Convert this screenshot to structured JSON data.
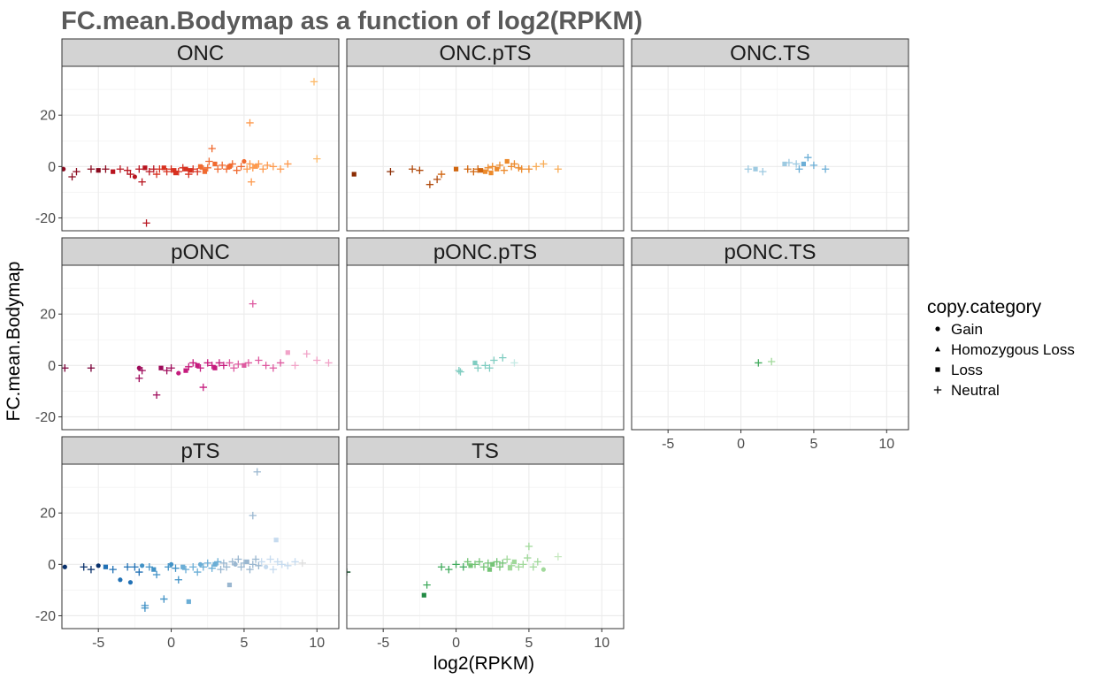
{
  "chart_data": {
    "type": "scatter",
    "title": "FC.mean.Bodymap as a function of log2(RPKM)",
    "xlabel": "log2(RPKM)",
    "ylabel": "FC.mean.Bodymap",
    "xlim": [
      -7.5,
      11.5
    ],
    "ylim": [
      -25,
      39
    ],
    "x_ticks": [
      -5,
      0,
      5,
      10
    ],
    "y_ticks": [
      -20,
      0,
      20
    ],
    "grid": true,
    "legend": {
      "title": "copy.category",
      "position": "right",
      "entries": [
        {
          "label": "Gain",
          "shape": "circle"
        },
        {
          "label": "Homozygous Loss",
          "shape": "triangle"
        },
        {
          "label": "Loss",
          "shape": "square"
        },
        {
          "label": "Neutral",
          "shape": "plus"
        }
      ]
    },
    "panels": [
      {
        "label": "ONC",
        "colors": [
          "#8b0a1f",
          "#b8141f",
          "#d7301f",
          "#f06a30",
          "#fd9a4e",
          "#fdbb6c"
        ],
        "points": [
          [
            -7.4,
            -1,
            "c"
          ],
          [
            -6.5,
            -2,
            "p"
          ],
          [
            -6.8,
            -4,
            "p"
          ],
          [
            -5.5,
            -1,
            "p"
          ],
          [
            -5,
            -1.5,
            "s"
          ],
          [
            -4.5,
            -1,
            "p"
          ],
          [
            -4,
            -2,
            "s"
          ],
          [
            -3.5,
            -1,
            "p"
          ],
          [
            -3,
            -1.5,
            "p"
          ],
          [
            -2.8,
            -3,
            "p"
          ],
          [
            -2.5,
            -4,
            "c"
          ],
          [
            -2.2,
            -1,
            "p"
          ],
          [
            -2,
            -6,
            "p"
          ],
          [
            -1.8,
            -0.5,
            "s"
          ],
          [
            -1.5,
            -2,
            "p"
          ],
          [
            -1.2,
            -1,
            "p"
          ],
          [
            -1,
            -3,
            "p"
          ],
          [
            -0.8,
            -1,
            "p"
          ],
          [
            -0.5,
            -0.5,
            "s"
          ],
          [
            -0.3,
            -2,
            "p"
          ],
          [
            0,
            -1,
            "p"
          ],
          [
            0.2,
            -1.5,
            "s"
          ],
          [
            0.5,
            -2,
            "p"
          ],
          [
            0.8,
            -0.5,
            "p"
          ],
          [
            1,
            -1,
            "s"
          ],
          [
            1.2,
            -3,
            "p"
          ],
          [
            1.5,
            -1,
            "p"
          ],
          [
            1.8,
            -2,
            "p"
          ],
          [
            2,
            0,
            "s"
          ],
          [
            2.2,
            -1,
            "p"
          ],
          [
            2.5,
            -0.5,
            "p"
          ],
          [
            2.6,
            2,
            "p"
          ],
          [
            2.8,
            7,
            "p"
          ],
          [
            3,
            1,
            "s"
          ],
          [
            3.2,
            -1,
            "p"
          ],
          [
            3.5,
            0.5,
            "p"
          ],
          [
            3.8,
            -1,
            "p"
          ],
          [
            4,
            0,
            "s"
          ],
          [
            4.2,
            1,
            "p"
          ],
          [
            4.5,
            -1.5,
            "p"
          ],
          [
            4.8,
            0,
            "p"
          ],
          [
            5,
            2,
            "c"
          ],
          [
            5.2,
            -1,
            "p"
          ],
          [
            5.4,
            1,
            "p"
          ],
          [
            5.6,
            -0.5,
            "p"
          ],
          [
            5.8,
            0,
            "s"
          ],
          [
            6,
            1,
            "p"
          ],
          [
            6.3,
            -1,
            "p"
          ],
          [
            6.6,
            0.5,
            "p"
          ],
          [
            7,
            0,
            "p"
          ],
          [
            7.5,
            -1,
            "p"
          ],
          [
            8,
            1,
            "p"
          ],
          [
            5.5,
            -6,
            "p"
          ],
          [
            5.4,
            17,
            "p"
          ],
          [
            9.8,
            33,
            "p"
          ],
          [
            10,
            3,
            "p"
          ],
          [
            -1.7,
            -22,
            "p"
          ],
          [
            0.3,
            -2.5,
            "s"
          ],
          [
            1.3,
            -1.5,
            "s"
          ],
          [
            2.3,
            -2,
            "s"
          ]
        ]
      },
      {
        "label": "ONC.pTS",
        "colors": [
          "#8c2d04",
          "#b04a0c",
          "#d0650e",
          "#ec8a2c",
          "#f8ad58",
          "#fdd092"
        ],
        "points": [
          [
            -7,
            -3,
            "s"
          ],
          [
            -4.5,
            -2,
            "p"
          ],
          [
            -3,
            -1,
            "p"
          ],
          [
            -2.5,
            -1.5,
            "p"
          ],
          [
            -1.8,
            -7,
            "p"
          ],
          [
            -1.3,
            -5,
            "p"
          ],
          [
            -1,
            -3,
            "p"
          ],
          [
            0,
            -1,
            "s"
          ],
          [
            0.8,
            -1,
            "p"
          ],
          [
            1.2,
            -2,
            "p"
          ],
          [
            1.5,
            -1,
            "p"
          ],
          [
            2,
            -2,
            "s"
          ],
          [
            2.2,
            -0.5,
            "p"
          ],
          [
            2.5,
            0,
            "p"
          ],
          [
            2.8,
            -1,
            "s"
          ],
          [
            3,
            0.5,
            "p"
          ],
          [
            3.3,
            -1.5,
            "p"
          ],
          [
            3.5,
            2,
            "s"
          ],
          [
            3.8,
            0,
            "p"
          ],
          [
            4,
            1,
            "p"
          ],
          [
            4.3,
            -0.5,
            "p"
          ],
          [
            4.5,
            -1,
            "p"
          ],
          [
            5,
            -1,
            "p"
          ],
          [
            5.5,
            0,
            "p"
          ],
          [
            6,
            1,
            "p"
          ],
          [
            7,
            -1,
            "p"
          ],
          [
            1.7,
            -1.5,
            "s"
          ],
          [
            2.4,
            -2.5,
            "s"
          ]
        ]
      },
      {
        "label": "ONC.TS",
        "colors": [
          "#fdd9a0",
          "#c6e0ea",
          "#9ecae1",
          "#6baed6",
          "#4a8fc0"
        ],
        "points": [
          [
            0.5,
            -1,
            "p"
          ],
          [
            1,
            -1,
            "s"
          ],
          [
            1.5,
            -2,
            "p"
          ],
          [
            3,
            1,
            "s"
          ],
          [
            3.3,
            1.5,
            "p"
          ],
          [
            3.8,
            1,
            "p"
          ],
          [
            4,
            -1,
            "p"
          ],
          [
            4.3,
            1,
            "s"
          ],
          [
            4.6,
            3.5,
            "p"
          ],
          [
            5,
            0.5,
            "p"
          ],
          [
            5.8,
            -1,
            "p"
          ]
        ]
      },
      {
        "label": "pONC",
        "colors": [
          "#7a0037",
          "#9e0a5a",
          "#c51b7d",
          "#de5aa0",
          "#f1a3c8"
        ],
        "points": [
          [
            -7.3,
            -1,
            "p"
          ],
          [
            -5.5,
            -1,
            "p"
          ],
          [
            -2.2,
            -1,
            "c"
          ],
          [
            -2.2,
            -5,
            "p"
          ],
          [
            -2,
            -2,
            "p"
          ],
          [
            -1,
            -11.5,
            "p"
          ],
          [
            -0.7,
            -1,
            "s"
          ],
          [
            -0.3,
            -2,
            "p"
          ],
          [
            0,
            -1,
            "p"
          ],
          [
            0.5,
            -3,
            "c"
          ],
          [
            1,
            -2,
            "s"
          ],
          [
            1.2,
            -0.5,
            "p"
          ],
          [
            1.5,
            1,
            "p"
          ],
          [
            1.8,
            0,
            "s"
          ],
          [
            2,
            -1,
            "p"
          ],
          [
            2.2,
            -8.5,
            "p"
          ],
          [
            2.5,
            1,
            "p"
          ],
          [
            2.8,
            0,
            "p"
          ],
          [
            3,
            -1,
            "s"
          ],
          [
            3.3,
            1,
            "p"
          ],
          [
            3.6,
            0,
            "p"
          ],
          [
            4,
            1,
            "p"
          ],
          [
            4.3,
            -1,
            "p"
          ],
          [
            4.6,
            0.5,
            "p"
          ],
          [
            5,
            0,
            "s"
          ],
          [
            5.3,
            1,
            "p"
          ],
          [
            5.6,
            24,
            "p"
          ],
          [
            6,
            2,
            "p"
          ],
          [
            6.5,
            0,
            "p"
          ],
          [
            7,
            -1,
            "p"
          ],
          [
            7.5,
            1,
            "p"
          ],
          [
            8,
            5,
            "s"
          ],
          [
            8.5,
            0,
            "p"
          ],
          [
            9.3,
            4.5,
            "p"
          ],
          [
            10,
            2,
            "p"
          ],
          [
            10.8,
            1,
            "p"
          ]
        ]
      },
      {
        "label": "pONC.pTS",
        "colors": [
          "#01665e",
          "#35978f",
          "#80cdc1",
          "#c7eae5",
          "#e0f3f0"
        ],
        "points": [
          [
            0.2,
            -2,
            "p"
          ],
          [
            0.3,
            -2.5,
            "p"
          ],
          [
            1.3,
            1,
            "s"
          ],
          [
            1.5,
            -1,
            "p"
          ],
          [
            2,
            0,
            "p"
          ],
          [
            2.3,
            -1,
            "p"
          ],
          [
            2.6,
            2,
            "p"
          ],
          [
            3.2,
            3,
            "p"
          ],
          [
            4,
            1,
            "p"
          ]
        ]
      },
      {
        "label": "pONC.TS",
        "colors": [
          "#41ab5d",
          "#a1d99b"
        ],
        "points": [
          [
            1.2,
            1,
            "p"
          ],
          [
            2.1,
            1.5,
            "p"
          ]
        ]
      },
      {
        "label": "pTS",
        "colors": [
          "#08306b",
          "#2171b5",
          "#4292c6",
          "#6baed6",
          "#9ab7d0",
          "#c6dbef",
          "#dedede"
        ],
        "points": [
          [
            -7.3,
            -1,
            "c"
          ],
          [
            -6,
            -1,
            "p"
          ],
          [
            -5.5,
            -2,
            "p"
          ],
          [
            -5,
            -0.5,
            "c"
          ],
          [
            -4.5,
            -1,
            "s"
          ],
          [
            -4,
            -2,
            "p"
          ],
          [
            -3.5,
            -6,
            "c"
          ],
          [
            -3,
            -1,
            "p"
          ],
          [
            -2.8,
            -7,
            "c"
          ],
          [
            -2.5,
            -1,
            "p"
          ],
          [
            -2.2,
            -3,
            "p"
          ],
          [
            -2,
            -0.5,
            "c"
          ],
          [
            -1.8,
            -16,
            "p"
          ],
          [
            -1.5,
            -1,
            "p"
          ],
          [
            -1.2,
            -2,
            "s"
          ],
          [
            -1,
            -4,
            "p"
          ],
          [
            -0.5,
            -13.5,
            "p"
          ],
          [
            -0.2,
            -1,
            "p"
          ],
          [
            0,
            0,
            "c"
          ],
          [
            0.3,
            -1.5,
            "p"
          ],
          [
            0.5,
            -6,
            "p"
          ],
          [
            0.8,
            -1,
            "s"
          ],
          [
            1,
            -2,
            "p"
          ],
          [
            1.2,
            -14.5,
            "s"
          ],
          [
            1.5,
            -1,
            "p"
          ],
          [
            1.8,
            -3,
            "p"
          ],
          [
            2,
            0,
            "c"
          ],
          [
            2.2,
            -1,
            "p"
          ],
          [
            2.5,
            0.5,
            "p"
          ],
          [
            2.8,
            -1.5,
            "p"
          ],
          [
            3,
            0,
            "s"
          ],
          [
            3.2,
            1,
            "p"
          ],
          [
            3.4,
            -2,
            "p"
          ],
          [
            3.6,
            0.5,
            "p"
          ],
          [
            3.8,
            -1,
            "p"
          ],
          [
            4,
            -8,
            "s"
          ],
          [
            4.2,
            1,
            "p"
          ],
          [
            4.4,
            0,
            "c"
          ],
          [
            4.6,
            2,
            "p"
          ],
          [
            4.8,
            -1,
            "p"
          ],
          [
            5,
            0.5,
            "p"
          ],
          [
            5.2,
            1,
            "s"
          ],
          [
            5.4,
            -2,
            "p"
          ],
          [
            5.6,
            0,
            "p"
          ],
          [
            5.8,
            2,
            "p"
          ],
          [
            6,
            -0.5,
            "p"
          ],
          [
            6.2,
            1,
            "p"
          ],
          [
            6.5,
            -1,
            "c"
          ],
          [
            6.8,
            2,
            "p"
          ],
          [
            7,
            -2,
            "p"
          ],
          [
            7.3,
            1,
            "p"
          ],
          [
            7.6,
            0,
            "p"
          ],
          [
            8,
            -0.5,
            "p"
          ],
          [
            8.5,
            1,
            "p"
          ],
          [
            9,
            0.5,
            "p"
          ],
          [
            5.6,
            19,
            "p"
          ],
          [
            5.9,
            36,
            "p"
          ],
          [
            7.2,
            9.5,
            "s"
          ],
          [
            -1.8,
            -17,
            "p"
          ]
        ]
      },
      {
        "label": "TS",
        "colors": [
          "#00441b",
          "#238b45",
          "#41ab5d",
          "#74c476",
          "#a1d99b",
          "#c7e9c0",
          "#d9d9d9"
        ],
        "points": [
          [
            -7.5,
            -3,
            "p"
          ],
          [
            -2.2,
            -12,
            "s"
          ],
          [
            -2,
            -8,
            "p"
          ],
          [
            -1,
            -1,
            "p"
          ],
          [
            -0.5,
            -2,
            "p"
          ],
          [
            0,
            0,
            "p"
          ],
          [
            0.5,
            -1,
            "p"
          ],
          [
            0.8,
            1,
            "p"
          ],
          [
            1,
            -0.5,
            "s"
          ],
          [
            1.3,
            0,
            "p"
          ],
          [
            1.6,
            1,
            "p"
          ],
          [
            1.9,
            -1,
            "p"
          ],
          [
            2.2,
            0.5,
            "p"
          ],
          [
            2.5,
            0,
            "s"
          ],
          [
            2.8,
            1,
            "p"
          ],
          [
            3,
            -1,
            "p"
          ],
          [
            3.2,
            0.5,
            "p"
          ],
          [
            3.5,
            2,
            "p"
          ],
          [
            3.8,
            -0.5,
            "p"
          ],
          [
            4,
            1,
            "s"
          ],
          [
            4.3,
            -1,
            "p"
          ],
          [
            4.6,
            0,
            "p"
          ],
          [
            4.9,
            2.5,
            "p"
          ],
          [
            5,
            7,
            "p"
          ],
          [
            5.3,
            -1,
            "p"
          ],
          [
            5.6,
            1,
            "p"
          ],
          [
            6,
            -2,
            "c"
          ],
          [
            7,
            3,
            "p"
          ],
          [
            2.3,
            -2,
            "s"
          ],
          [
            3.7,
            -1.5,
            "s"
          ]
        ]
      }
    ]
  }
}
